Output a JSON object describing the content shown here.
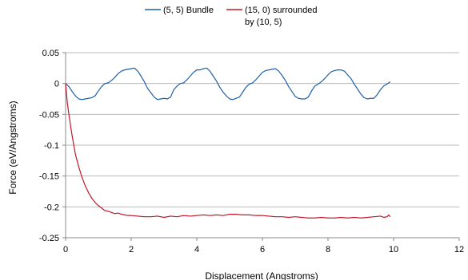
{
  "chart_data": {
    "type": "line",
    "xlabel": "Displacement (Angstroms)",
    "ylabel": "Force (eV/Angstroms)",
    "xlim": [
      0,
      12
    ],
    "ylim": [
      -0.25,
      0.05
    ],
    "xticks": [
      0,
      2,
      4,
      6,
      8,
      10,
      12
    ],
    "yticks": [
      0.05,
      0,
      -0.05,
      -0.1,
      -0.15,
      -0.2,
      -0.25
    ],
    "xtick_labels": [
      "0",
      "2",
      "4",
      "6",
      "8",
      "10",
      "12"
    ],
    "ytick_labels": [
      "0.05",
      "0",
      "-0.05",
      "-0.1",
      "-0.15",
      "-0.2",
      "-0.25"
    ],
    "grid": "horizontal",
    "legend_position": "top",
    "series": [
      {
        "name_lines": [
          "(5, 5) Bundle"
        ],
        "color": "#1f5fa8",
        "x": [
          0,
          0.1,
          0.2,
          0.3,
          0.4,
          0.5,
          0.6,
          0.7,
          0.8,
          0.9,
          1.0,
          1.1,
          1.2,
          1.3,
          1.4,
          1.5,
          1.6,
          1.7,
          1.8,
          1.9,
          2.0,
          2.1,
          2.2,
          2.3,
          2.4,
          2.5,
          2.6,
          2.7,
          2.8,
          2.9,
          3.0,
          3.1,
          3.2,
          3.3,
          3.4,
          3.5,
          3.6,
          3.7,
          3.8,
          3.9,
          4.0,
          4.1,
          4.2,
          4.3,
          4.4,
          4.5,
          4.6,
          4.7,
          4.8,
          4.9,
          5.0,
          5.1,
          5.2,
          5.3,
          5.4,
          5.5,
          5.6,
          5.7,
          5.8,
          5.9,
          6.0,
          6.1,
          6.2,
          6.3,
          6.4,
          6.5,
          6.6,
          6.7,
          6.8,
          6.9,
          7.0,
          7.1,
          7.2,
          7.3,
          7.4,
          7.5,
          7.6,
          7.7,
          7.8,
          7.9,
          8.0,
          8.1,
          8.2,
          8.3,
          8.4,
          8.5,
          8.6,
          8.7,
          8.8,
          8.9,
          9.0,
          9.1,
          9.2,
          9.3,
          9.4,
          9.5,
          9.6,
          9.7,
          9.8,
          9.9
        ],
        "y": [
          0,
          -0.005,
          -0.013,
          -0.02,
          -0.025,
          -0.026,
          -0.025,
          -0.024,
          -0.023,
          -0.02,
          -0.012,
          -0.005,
          0,
          0.001,
          0.005,
          0.01,
          0.016,
          0.02,
          0.022,
          0.023,
          0.024,
          0.025,
          0.02,
          0.012,
          0.003,
          -0.008,
          -0.015,
          -0.022,
          -0.026,
          -0.025,
          -0.024,
          -0.025,
          -0.022,
          -0.01,
          -0.004,
          0,
          0.001,
          0.006,
          0.012,
          0.018,
          0.022,
          0.022,
          0.024,
          0.025,
          0.02,
          0.012,
          0.004,
          -0.006,
          -0.014,
          -0.02,
          -0.025,
          -0.026,
          -0.024,
          -0.022,
          -0.014,
          -0.006,
          -0.001,
          0.001,
          0.006,
          0.012,
          0.018,
          0.021,
          0.022,
          0.023,
          0.024,
          0.02,
          0.013,
          0.005,
          -0.005,
          -0.013,
          -0.021,
          -0.024,
          -0.025,
          -0.025,
          -0.022,
          -0.012,
          -0.004,
          -0.001,
          0.003,
          0.008,
          0.014,
          0.019,
          0.021,
          0.022,
          0.022,
          0.02,
          0.014,
          0.008,
          -0.001,
          -0.009,
          -0.017,
          -0.023,
          -0.025,
          -0.024,
          -0.024,
          -0.018,
          -0.01,
          -0.004,
          -0.001,
          0.003
        ]
      },
      {
        "name_lines": [
          "(15, 0) surrounded",
          "by (10, 5)"
        ],
        "color": "#c0182a",
        "x": [
          0,
          0.05,
          0.1,
          0.15,
          0.2,
          0.25,
          0.3,
          0.4,
          0.5,
          0.6,
          0.7,
          0.8,
          0.9,
          1.0,
          1.1,
          1.2,
          1.3,
          1.4,
          1.5,
          1.6,
          1.7,
          1.8,
          1.9,
          2.0,
          2.2,
          2.4,
          2.6,
          2.8,
          3.0,
          3.2,
          3.4,
          3.6,
          3.8,
          4.0,
          4.2,
          4.4,
          4.6,
          4.8,
          5.0,
          5.2,
          5.4,
          5.6,
          5.8,
          6.0,
          6.2,
          6.4,
          6.6,
          6.8,
          7.0,
          7.2,
          7.4,
          7.6,
          7.8,
          8.0,
          8.2,
          8.4,
          8.6,
          8.8,
          9.0,
          9.2,
          9.4,
          9.6,
          9.7,
          9.8,
          9.85,
          9.9
        ],
        "y": [
          0,
          -0.03,
          -0.05,
          -0.068,
          -0.085,
          -0.1,
          -0.115,
          -0.135,
          -0.152,
          -0.166,
          -0.177,
          -0.186,
          -0.193,
          -0.198,
          -0.202,
          -0.206,
          -0.207,
          -0.209,
          -0.211,
          -0.21,
          -0.212,
          -0.213,
          -0.214,
          -0.214,
          -0.215,
          -0.216,
          -0.216,
          -0.215,
          -0.217,
          -0.215,
          -0.216,
          -0.214,
          -0.215,
          -0.214,
          -0.213,
          -0.214,
          -0.213,
          -0.214,
          -0.212,
          -0.212,
          -0.213,
          -0.213,
          -0.214,
          -0.214,
          -0.215,
          -0.216,
          -0.216,
          -0.217,
          -0.216,
          -0.217,
          -0.218,
          -0.218,
          -0.217,
          -0.218,
          -0.218,
          -0.217,
          -0.218,
          -0.217,
          -0.218,
          -0.217,
          -0.216,
          -0.215,
          -0.217,
          -0.216,
          -0.213,
          -0.216
        ]
      }
    ]
  }
}
